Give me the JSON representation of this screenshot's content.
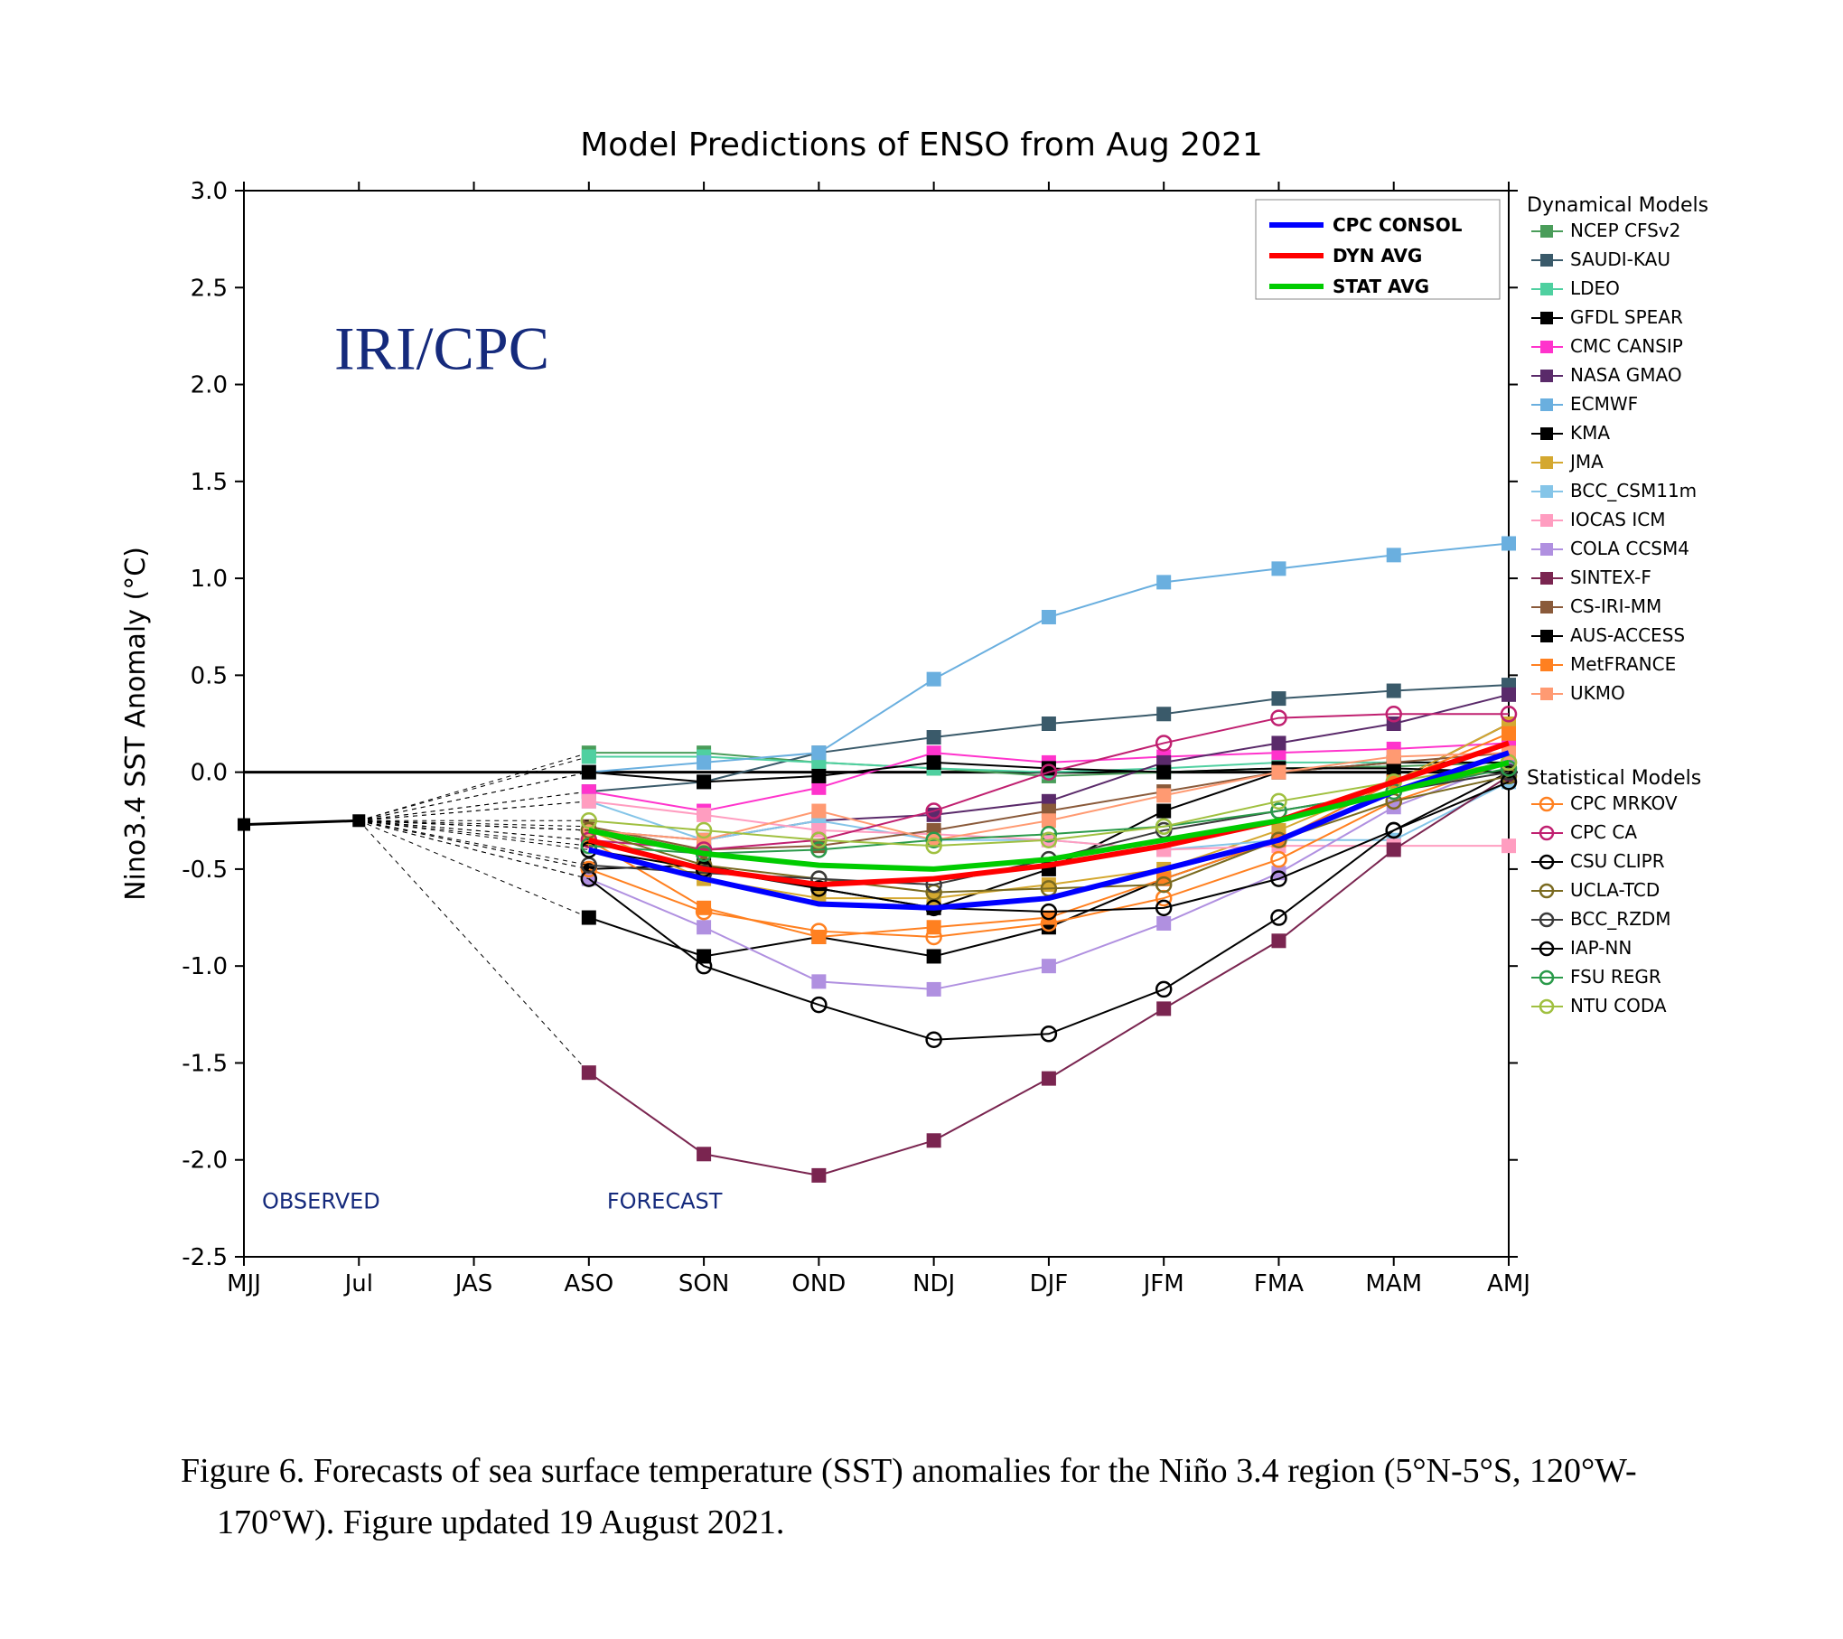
{
  "chart": {
    "type": "line",
    "title": "Model Predictions of ENSO from Aug 2021",
    "brand": "IRI/CPC",
    "ylabel": "Nino3.4 SST Anomaly (°C)",
    "background_color": "#ffffff",
    "grid_color": "#e0e0e0",
    "axis_color": "#000000",
    "ylim": [
      -2.5,
      3.0
    ],
    "ytick_step": 0.5,
    "yticks": [
      -2.5,
      -2.0,
      -1.5,
      -1.0,
      -0.5,
      0.0,
      0.5,
      1.0,
      1.5,
      2.0,
      2.5,
      3.0
    ],
    "xlabels": [
      "MJJ",
      "Jul",
      "JAS",
      "ASO",
      "SON",
      "OND",
      "NDJ",
      "DJF",
      "JFM",
      "FMA",
      "MAM",
      "AMJ"
    ],
    "annotations": {
      "observed": "OBSERVED",
      "forecast": "FORECAST"
    },
    "observed_values": [
      -0.27,
      -0.25
    ],
    "observed_color": "#000000",
    "zero_line_width": 3,
    "avg_series": [
      {
        "name": "CPC CONSOL",
        "color": "#0000ff",
        "width": 6,
        "values": [
          null,
          null,
          null,
          -0.4,
          -0.55,
          -0.68,
          -0.7,
          -0.65,
          -0.5,
          -0.35,
          -0.1,
          0.1
        ]
      },
      {
        "name": "DYN AVG",
        "color": "#ff0000",
        "width": 6,
        "values": [
          null,
          null,
          null,
          -0.35,
          -0.5,
          -0.58,
          -0.55,
          -0.48,
          -0.38,
          -0.25,
          -0.05,
          0.15
        ]
      },
      {
        "name": "STAT AVG",
        "color": "#00cc00",
        "width": 6,
        "values": [
          null,
          null,
          null,
          -0.3,
          -0.42,
          -0.48,
          -0.5,
          -0.45,
          -0.35,
          -0.25,
          -0.1,
          0.05
        ]
      }
    ],
    "dynamical_models": [
      {
        "name": "NCEP CFSv2",
        "color": "#4a9d5a",
        "marker": "square",
        "values": [
          null,
          null,
          null,
          0.1,
          0.1,
          0.05,
          0.02,
          -0.02,
          0.0,
          0.02,
          0.03,
          0.05
        ]
      },
      {
        "name": "SAUDI-KAU",
        "color": "#3a5a6a",
        "marker": "square",
        "values": [
          null,
          null,
          null,
          -0.1,
          -0.05,
          0.1,
          0.18,
          0.25,
          0.3,
          0.38,
          0.42,
          0.45
        ]
      },
      {
        "name": "LDEO",
        "color": "#4fd0a0",
        "marker": "square",
        "values": [
          null,
          null,
          null,
          0.08,
          0.08,
          0.05,
          0.02,
          0.0,
          0.02,
          0.05,
          0.05,
          0.05
        ]
      },
      {
        "name": "GFDL SPEAR",
        "color": "#000000",
        "marker": "square",
        "values": [
          null,
          null,
          null,
          -0.75,
          -0.95,
          -0.85,
          -0.95,
          -0.8,
          -0.55,
          -0.35,
          -0.05,
          0.25
        ]
      },
      {
        "name": "CMC CANSIP",
        "color": "#ff33cc",
        "marker": "square",
        "values": [
          null,
          null,
          null,
          -0.1,
          -0.2,
          -0.08,
          0.1,
          0.05,
          0.08,
          0.1,
          0.12,
          0.15
        ]
      },
      {
        "name": "NASA GMAO",
        "color": "#5a2a6a",
        "marker": "square",
        "values": [
          null,
          null,
          null,
          -0.3,
          -0.35,
          -0.25,
          -0.22,
          -0.15,
          0.05,
          0.15,
          0.25,
          0.4
        ]
      },
      {
        "name": "ECMWF",
        "color": "#6aafdf",
        "marker": "square",
        "values": [
          null,
          null,
          null,
          0.0,
          0.05,
          0.1,
          0.48,
          0.8,
          0.98,
          1.05,
          1.12,
          1.18
        ]
      },
      {
        "name": "KMA",
        "color": "#000000",
        "marker": "square",
        "values": [
          null,
          null,
          null,
          -0.5,
          -0.48,
          -0.6,
          -0.7,
          -0.5,
          -0.2,
          0.0,
          0.05,
          0.05
        ]
      },
      {
        "name": "JMA",
        "color": "#d4a830",
        "marker": "square",
        "values": [
          null,
          null,
          null,
          -0.3,
          -0.55,
          -0.65,
          -0.65,
          -0.58,
          -0.5,
          -0.3,
          -0.05,
          0.25
        ]
      },
      {
        "name": "BCC_CSM11m",
        "color": "#85c5e8",
        "marker": "square",
        "values": [
          null,
          null,
          null,
          -0.15,
          -0.35,
          -0.25,
          -0.35,
          -0.35,
          -0.4,
          -0.35,
          -0.35,
          -0.05
        ]
      },
      {
        "name": "IOCAS ICM",
        "color": "#ff9dc0",
        "marker": "square",
        "values": [
          null,
          null,
          null,
          -0.15,
          -0.22,
          -0.3,
          -0.32,
          -0.35,
          -0.4,
          -0.38,
          -0.38,
          -0.38
        ]
      },
      {
        "name": "COLA CCSM4",
        "color": "#b090e0",
        "marker": "square",
        "values": [
          null,
          null,
          null,
          -0.55,
          -0.8,
          -1.08,
          -1.12,
          -1.0,
          -0.78,
          -0.52,
          -0.18,
          0.05
        ]
      },
      {
        "name": "SINTEX-F",
        "color": "#7a2550",
        "marker": "square",
        "values": [
          null,
          null,
          null,
          -1.55,
          -1.97,
          -2.08,
          -1.9,
          -1.58,
          -1.22,
          -0.87,
          -0.4,
          -0.02
        ]
      },
      {
        "name": "CS-IRI-MM",
        "color": "#8a5a3a",
        "marker": "square",
        "values": [
          null,
          null,
          null,
          -0.28,
          -0.4,
          -0.38,
          -0.3,
          -0.2,
          -0.1,
          0.0,
          0.05,
          0.1
        ]
      },
      {
        "name": "AUS-ACCESS",
        "color": "#000000",
        "marker": "square",
        "values": [
          null,
          null,
          null,
          0.0,
          -0.05,
          -0.02,
          0.05,
          0.02,
          0.0,
          0.02,
          0.02,
          0.0
        ]
      },
      {
        "name": "MetFRANCE",
        "color": "#ff8020",
        "marker": "square",
        "values": [
          null,
          null,
          null,
          -0.35,
          -0.7,
          -0.85,
          -0.8,
          -0.75,
          -0.55,
          -0.35,
          -0.05,
          0.2
        ]
      },
      {
        "name": "UKMO",
        "color": "#ff9a72",
        "marker": "square",
        "values": [
          null,
          null,
          null,
          -0.3,
          -0.35,
          -0.2,
          -0.35,
          -0.25,
          -0.12,
          0.0,
          0.08,
          0.1
        ]
      }
    ],
    "statistical_models": [
      {
        "name": "CPC MRKOV",
        "color": "#ff8020",
        "marker": "circle",
        "values": [
          null,
          null,
          null,
          -0.5,
          -0.72,
          -0.82,
          -0.85,
          -0.78,
          -0.65,
          -0.45,
          -0.15,
          0.05
        ]
      },
      {
        "name": "CPC CA",
        "color": "#c02070",
        "marker": "circle",
        "values": [
          null,
          null,
          null,
          -0.35,
          -0.4,
          -0.35,
          -0.2,
          0.0,
          0.15,
          0.28,
          0.3,
          0.3
        ]
      },
      {
        "name": "CSU CLIPR",
        "color": "#000000",
        "marker": "circle",
        "values": [
          null,
          null,
          null,
          -0.55,
          -1.0,
          -1.2,
          -1.38,
          -1.35,
          -1.12,
          -0.75,
          -0.3,
          0.0
        ]
      },
      {
        "name": "UCLA-TCD",
        "color": "#7a6a20",
        "marker": "circle",
        "values": [
          null,
          null,
          null,
          -0.3,
          -0.48,
          -0.55,
          -0.62,
          -0.6,
          -0.58,
          -0.35,
          -0.15,
          -0.02
        ]
      },
      {
        "name": "BCC_RZDM",
        "color": "#3a3a3a",
        "marker": "circle",
        "values": [
          null,
          null,
          null,
          -0.48,
          -0.52,
          -0.55,
          -0.58,
          -0.45,
          -0.3,
          -0.2,
          -0.1,
          0.0
        ]
      },
      {
        "name": "IAP-NN",
        "color": "#000000",
        "marker": "circle",
        "values": [
          null,
          null,
          null,
          -0.4,
          -0.5,
          -0.6,
          -0.7,
          -0.72,
          -0.7,
          -0.55,
          -0.3,
          -0.05
        ]
      },
      {
        "name": "FSU REGR",
        "color": "#2a9a4a",
        "marker": "circle",
        "values": [
          null,
          null,
          null,
          -0.38,
          -0.42,
          -0.4,
          -0.35,
          -0.32,
          -0.28,
          -0.2,
          -0.1,
          0.02
        ]
      },
      {
        "name": "NTU CODA",
        "color": "#a0c040",
        "marker": "circle",
        "values": [
          null,
          null,
          null,
          -0.25,
          -0.3,
          -0.35,
          -0.38,
          -0.35,
          -0.28,
          -0.15,
          -0.05,
          0.05
        ]
      }
    ],
    "legend_headers": {
      "dynamical": "Dynamical Models",
      "statistical": "Statistical Models"
    }
  },
  "caption": "Figure 6. Forecasts of sea surface temperature (SST) anomalies for the Niño 3.4 region (5°N-5°S, 120°W-170°W). Figure updated 19 August 2021."
}
